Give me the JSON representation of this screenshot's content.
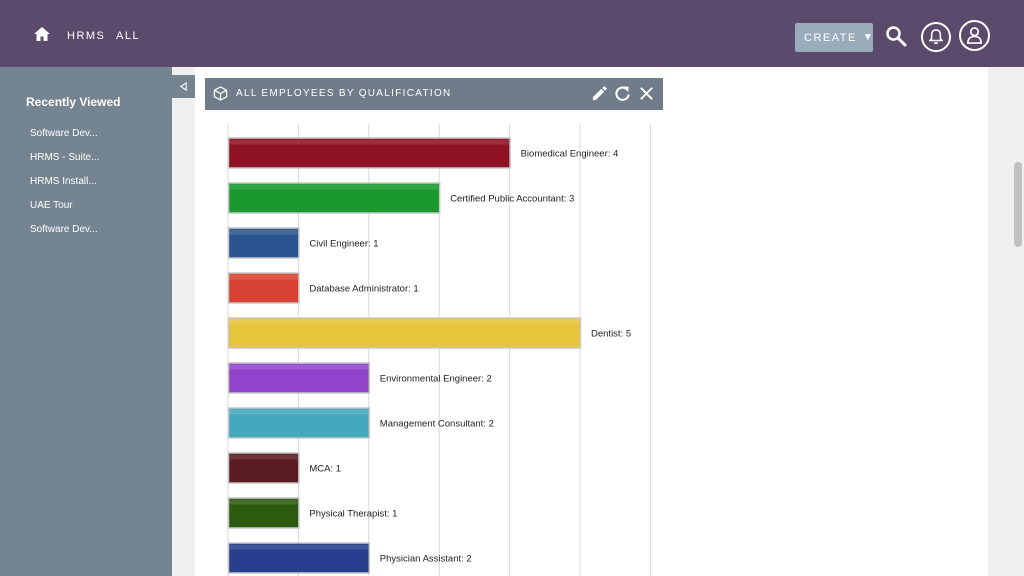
{
  "nav": {
    "links": [
      "HRMS",
      "ALL"
    ],
    "create_label": "CREATE",
    "icons": [
      "home-icon",
      "search-icon",
      "bell-icon",
      "user-icon"
    ],
    "bar_color": "#5b4a6b"
  },
  "sidebar": {
    "title": "Recently Viewed",
    "items": [
      {
        "label": "Software Dev..."
      },
      {
        "label": "HRMS - Suite..."
      },
      {
        "label": "HRMS Install..."
      },
      {
        "label": "UAE Tour"
      },
      {
        "label": "Software Dev..."
      }
    ]
  },
  "dashlet": {
    "title": "ALL EMPLOYEES BY QUALIFICATION",
    "actions": [
      "pencil-icon",
      "refresh-icon",
      "close-icon"
    ]
  },
  "chart_data": {
    "type": "bar",
    "orientation": "horizontal",
    "title": "",
    "xlabel": "",
    "ylabel": "",
    "xlim": [
      0,
      6
    ],
    "grid": true,
    "categories": [
      "Biomedical Engineer",
      "Certified Public Accountant",
      "Civil Engineer",
      "Database Administrator",
      "Dentist",
      "Environmental Engineer",
      "Management Consultant",
      "MCA",
      "Physical Therapist",
      "Physician Assistant"
    ],
    "values": [
      4,
      3,
      1,
      1,
      5,
      2,
      2,
      1,
      1,
      2
    ],
    "labels": [
      "Biomedical Engineer: 4",
      "Certified Public Accountant: 3",
      "Civil Engineer: 1",
      "Database Administrator: 1",
      "Dentist: 5",
      "Environmental Engineer: 2",
      "Management Consultant: 2",
      "MCA: 1",
      "Physical Therapist: 1",
      "Physician Assistant: 2"
    ],
    "colors": [
      "#8f1124",
      "#1a9a2e",
      "#2b5590",
      "#d84232",
      "#e6c43c",
      "#9044cc",
      "#45a9bd",
      "#5b1b22",
      "#2c5a10",
      "#283e8e"
    ]
  }
}
